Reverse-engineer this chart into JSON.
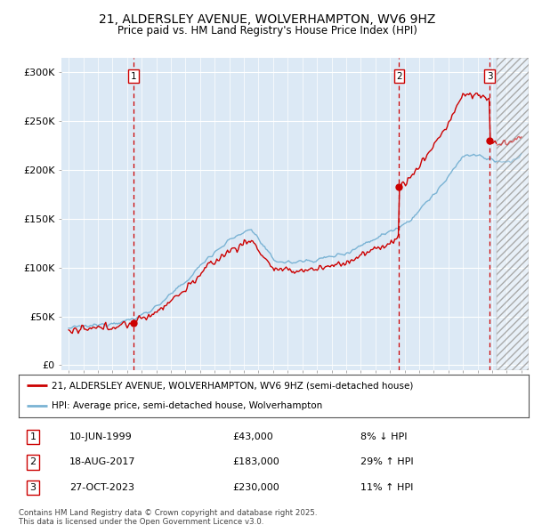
{
  "title1": "21, ALDERSLEY AVENUE, WOLVERHAMPTON, WV6 9HZ",
  "title2": "Price paid vs. HM Land Registry's House Price Index (HPI)",
  "ylabel_ticks": [
    "£0",
    "£50K",
    "£100K",
    "£150K",
    "£200K",
    "£250K",
    "£300K"
  ],
  "ytick_vals": [
    0,
    50000,
    100000,
    150000,
    200000,
    250000,
    300000
  ],
  "ylim": [
    -5000,
    315000
  ],
  "xlim_start": 1994.5,
  "xlim_end": 2026.5,
  "hpi_color": "#7ab3d4",
  "price_color": "#cc0000",
  "bg_color": "#dce9f5",
  "legend_line1": "21, ALDERSLEY AVENUE, WOLVERHAMPTON, WV6 9HZ (semi-detached house)",
  "legend_line2": "HPI: Average price, semi-detached house, Wolverhampton",
  "transactions": [
    {
      "num": 1,
      "date": "10-JUN-1999",
      "price": "£43,000",
      "pct": "8% ↓ HPI",
      "year": 1999.44,
      "price_val": 43000
    },
    {
      "num": 2,
      "date": "18-AUG-2017",
      "price": "£183,000",
      "pct": "29% ↑ HPI",
      "year": 2017.63,
      "price_val": 183000
    },
    {
      "num": 3,
      "date": "27-OCT-2023",
      "price": "£230,000",
      "pct": "11% ↑ HPI",
      "year": 2023.83,
      "price_val": 230000
    }
  ],
  "hatch_start": 2024.3,
  "footer1": "Contains HM Land Registry data © Crown copyright and database right 2025.",
  "footer2": "This data is licensed under the Open Government Licence v3.0."
}
